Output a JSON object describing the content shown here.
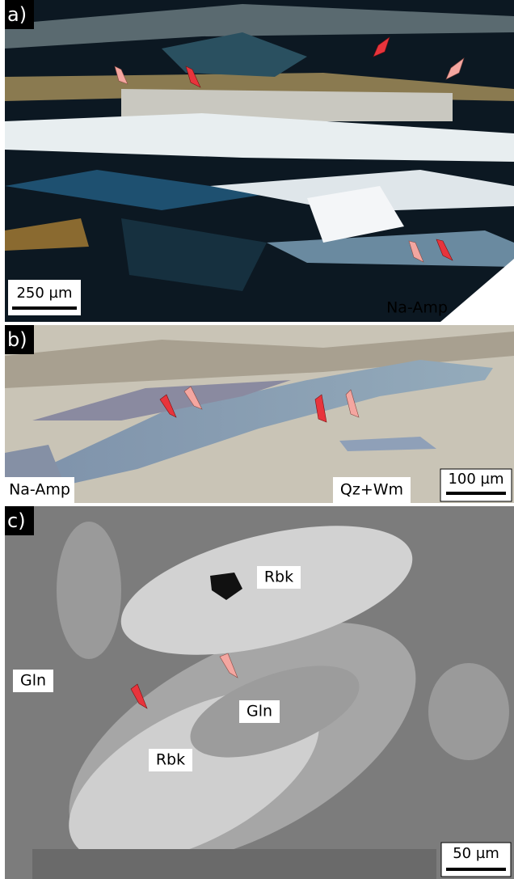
{
  "panels": [
    {
      "label": "a)",
      "scale_bar": "250 µm",
      "annotations": [
        "Na-Amp"
      ]
    },
    {
      "label": "b)",
      "scale_bar": "100 µm",
      "annotations": [
        "Na-Amp",
        "Qz+Wm"
      ]
    },
    {
      "label": "c)",
      "scale_bar": "50 µm",
      "annotations": [
        "Rbk",
        "Gln",
        "Gln",
        "Rbk"
      ]
    }
  ]
}
